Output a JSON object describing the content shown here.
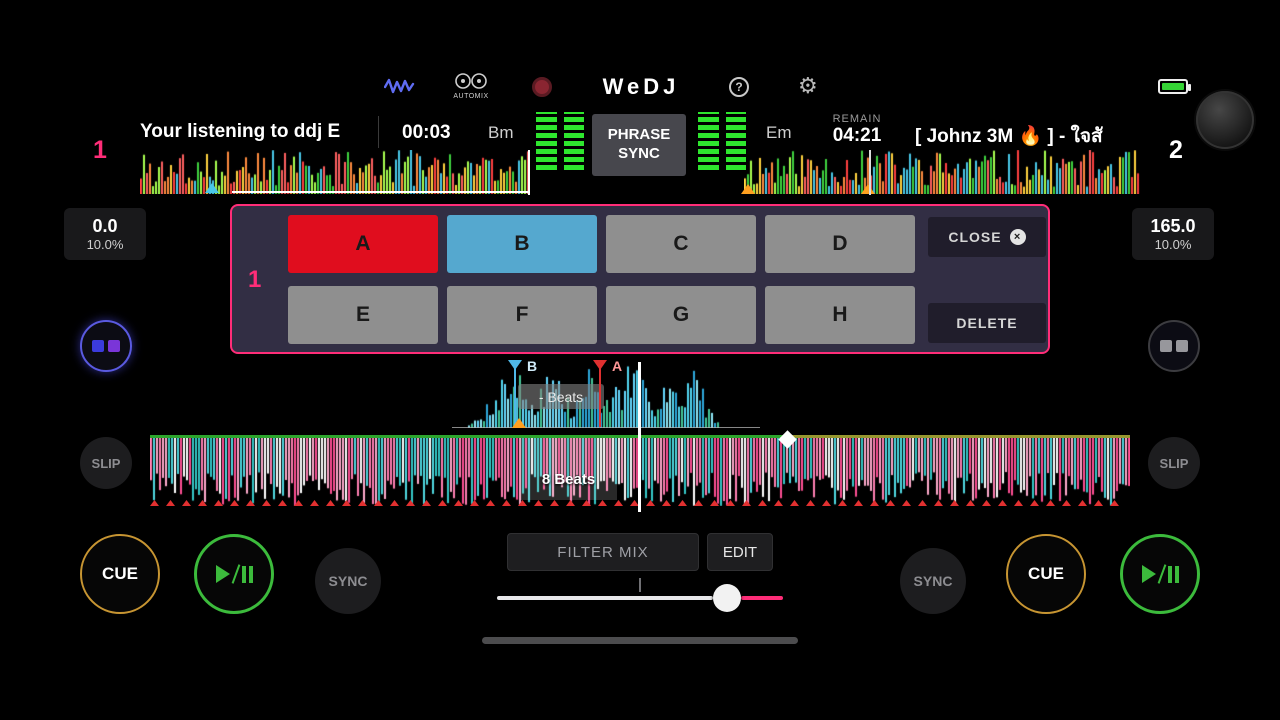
{
  "header": {
    "app_title": "WeDJ",
    "automix_label": "AUTOMIX"
  },
  "icons": {
    "help": "?",
    "gear": "⚙",
    "close_x": "×"
  },
  "deck1": {
    "number": "1",
    "track_title": "Your listening to ddj E",
    "elapsed_time": "00:03",
    "key": "Bm",
    "tempo": {
      "value": "0.0",
      "range": "10.0%"
    },
    "labels": {
      "cue": "CUE",
      "sync": "SYNC",
      "slip": "SLIP"
    }
  },
  "deck2": {
    "number": "2",
    "track_title": "[ Johnz 3M 🔥 ] -  ใจสั",
    "remain_label": "REMAIN",
    "remain_time": "04:21",
    "key": "Em",
    "tempo": {
      "value": "165.0",
      "range": "10.0%"
    },
    "labels": {
      "cue": "CUE",
      "sync": "SYNC",
      "slip": "SLIP"
    }
  },
  "center": {
    "phrase_sync": "PHRASE SYNC",
    "filter_mix": "FILTER MIX",
    "edit": "EDIT"
  },
  "waveform": {
    "beats_label": "8 Beats",
    "loop_label": "- Beats",
    "cue_marker_a": "A",
    "cue_marker_b": "B"
  },
  "hotcues": {
    "deck_number": "1",
    "close": "CLOSE",
    "delete": "DELETE",
    "pads": [
      {
        "label": "A",
        "color": "#e00d1e"
      },
      {
        "label": "B",
        "color": "#55a8cf"
      },
      {
        "label": "C",
        "color": "#8f8f8f"
      },
      {
        "label": "D",
        "color": "#8f8f8f"
      },
      {
        "label": "E",
        "color": "#8f8f8f"
      },
      {
        "label": "F",
        "color": "#8f8f8f"
      },
      {
        "label": "G",
        "color": "#8f8f8f"
      },
      {
        "label": "H",
        "color": "#8f8f8f"
      }
    ]
  },
  "colors": {
    "accent_pink": "#ff2d78",
    "cue_ring_gold": "#c79532",
    "play_ring_green": "#3cbb3c",
    "vu_green": "#2ee62e",
    "battery_green": "#35d435",
    "pad_red": "#e00d1e",
    "pad_blue": "#55a8cf"
  }
}
